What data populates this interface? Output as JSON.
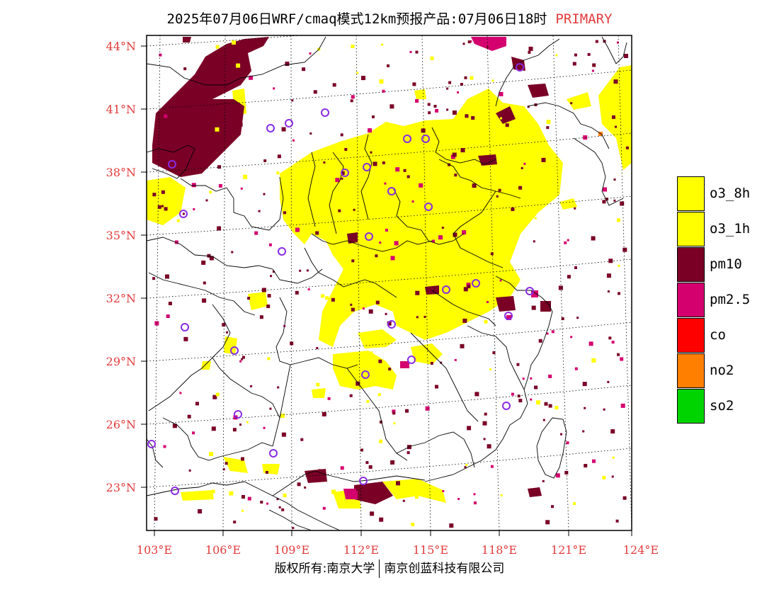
{
  "title": {
    "main": "2025年07月06日WRF/cmaq模式12km预报产品:07月06日18时",
    "tag": "PRIMARY",
    "tag_color": "#e23b3b"
  },
  "map": {
    "lat_labels": [
      "44°N",
      "41°N",
      "38°N",
      "35°N",
      "32°N",
      "29°N",
      "26°N",
      "23°N"
    ],
    "lon_labels": [
      "103°E",
      "106°E",
      "109°E",
      "112°E",
      "115°E",
      "118°E",
      "121°E",
      "124°E"
    ],
    "label_color": "#e23b3b"
  },
  "legend": [
    {
      "label": "o3_8h",
      "color": "#ffff00"
    },
    {
      "label": "o3_1h",
      "color": "#ffff00"
    },
    {
      "label": "pm10",
      "color": "#7a0026"
    },
    {
      "label": "pm2.5",
      "color": "#d4006e"
    },
    {
      "label": "co",
      "color": "#ff0000"
    },
    {
      "label": "no2",
      "color": "#ff8000"
    },
    {
      "label": "so2",
      "color": "#00d400"
    }
  ],
  "footer": {
    "left": "版权所有:南京大学",
    "right": "南京创蓝科技有限公司"
  }
}
